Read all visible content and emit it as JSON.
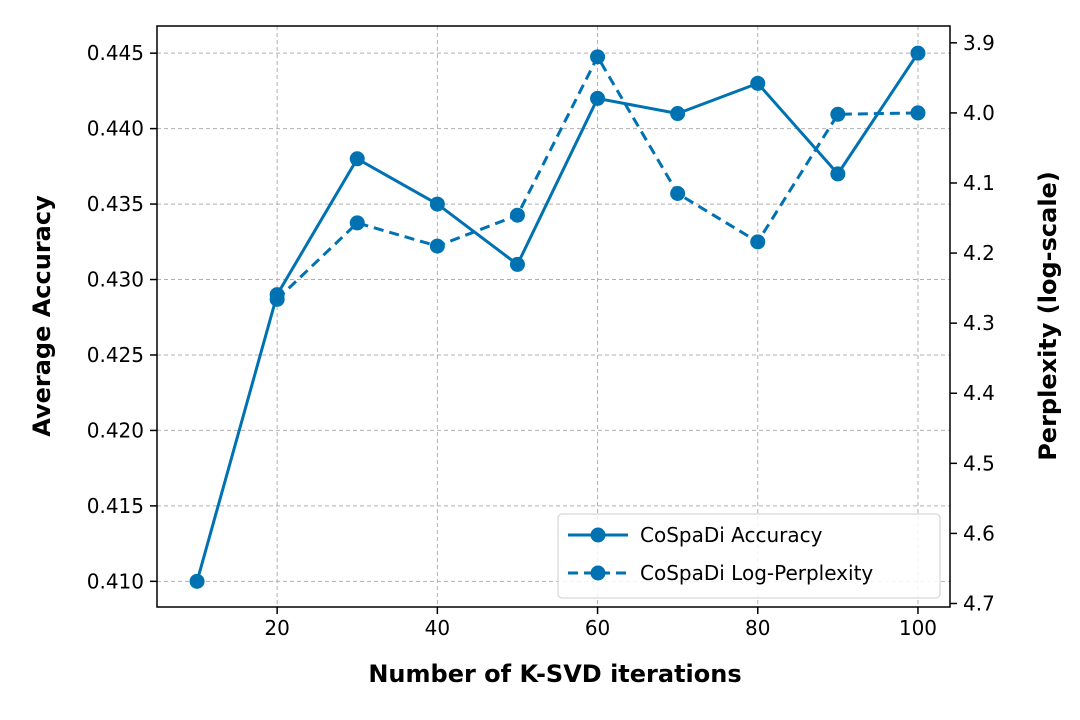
{
  "chart_data": {
    "type": "line",
    "title": "",
    "xlabel": "Number of K-SVD iterations",
    "ylabel_left": "Average Accuracy",
    "ylabel_right": "Perplexity (log-scale)",
    "x": [
      10,
      20,
      30,
      40,
      50,
      60,
      70,
      80,
      90,
      100
    ],
    "xlim": [
      5,
      104
    ],
    "xticks": [
      20,
      40,
      60,
      80,
      100
    ],
    "ylim_left": [
      0.4083,
      0.4468
    ],
    "yticks_left": [
      0.41,
      0.415,
      0.42,
      0.425,
      0.43,
      0.435,
      0.44,
      0.445
    ],
    "ytick_labels_left": [
      "0.410",
      "0.415",
      "0.420",
      "0.425",
      "0.430",
      "0.435",
      "0.440",
      "0.445"
    ],
    "ylim_right": [
      4.705,
      3.876
    ],
    "yticks_right": [
      3.9,
      4.0,
      4.1,
      4.2,
      4.3,
      4.4,
      4.5,
      4.6,
      4.7
    ],
    "ytick_labels_right": [
      "3.9",
      "4.0",
      "4.1",
      "4.2",
      "4.3",
      "4.4",
      "4.5",
      "4.6",
      "4.7"
    ],
    "grid": true,
    "legend_position": "lower-right",
    "color": "#0072b2",
    "series": [
      {
        "name": "CoSpaDi Accuracy",
        "axis": "left",
        "style": "solid",
        "x": [
          10,
          20,
          30,
          40,
          50,
          60,
          70,
          80,
          90,
          100
        ],
        "values": [
          0.41,
          0.429,
          0.438,
          0.435,
          0.431,
          0.442,
          0.441,
          0.443,
          0.437,
          0.445
        ]
      },
      {
        "name": "CoSpaDi Log-Perplexity",
        "axis": "right",
        "style": "dashed",
        "x": [
          20,
          30,
          40,
          50,
          60,
          70,
          80,
          90,
          100
        ],
        "values": [
          4.266,
          4.157,
          4.19,
          4.146,
          3.92,
          4.115,
          4.184,
          4.002,
          4.0
        ]
      }
    ]
  }
}
